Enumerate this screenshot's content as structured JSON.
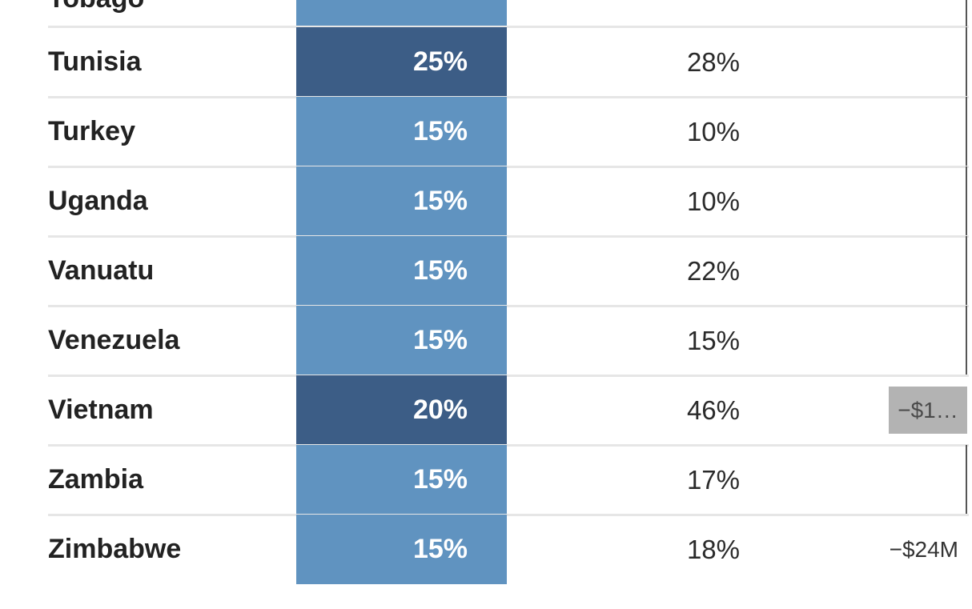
{
  "chart_data": {
    "type": "table",
    "columns": [
      "",
      "",
      "",
      ""
    ],
    "partial_row_label": "Tobago",
    "rows": [
      {
        "country": "Tunisia",
        "rate": "25%",
        "rate2": "28%",
        "highlight": true
      },
      {
        "country": "Turkey",
        "rate": "15%",
        "rate2": "10%"
      },
      {
        "country": "Uganda",
        "rate": "15%",
        "rate2": "10%"
      },
      {
        "country": "Vanuatu",
        "rate": "15%",
        "rate2": "22%"
      },
      {
        "country": "Venezuela",
        "rate": "15%",
        "rate2": "15%"
      },
      {
        "country": "Vietnam",
        "rate": "20%",
        "rate2": "46%",
        "highlight": true,
        "amount": "−$1…",
        "amount_boxed": true
      },
      {
        "country": "Zambia",
        "rate": "15%",
        "rate2": "17%"
      },
      {
        "country": "Zimbabwe",
        "rate": "15%",
        "rate2": "18%",
        "amount": "−$24M"
      }
    ],
    "colors": {
      "rate_cell": "#6093c0",
      "rate_cell_high": "#3c5d86",
      "amount_box": "#b3b3b3",
      "row_divider": "#e6e6e6"
    }
  }
}
